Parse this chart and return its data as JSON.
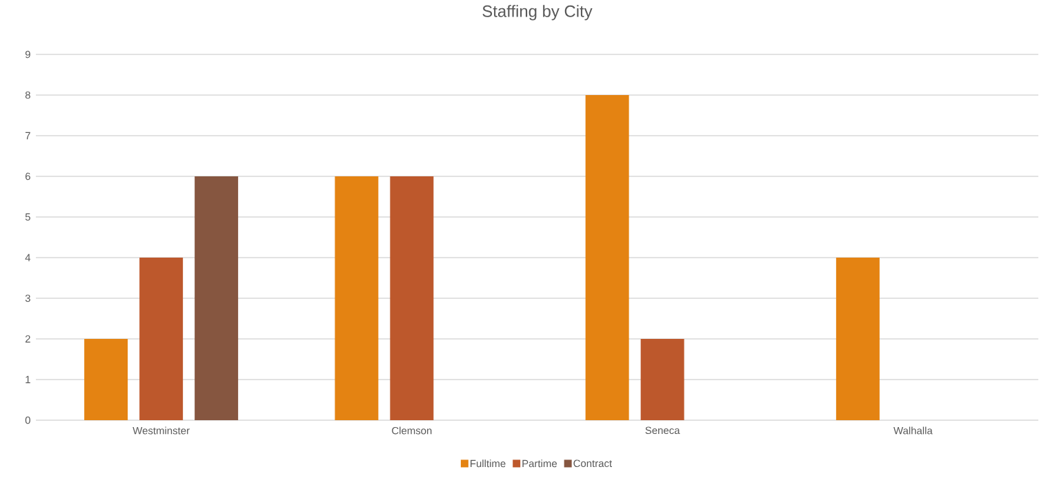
{
  "chart_data": {
    "type": "bar",
    "title": "Staffing by City",
    "categories": [
      "Westminster",
      "Clemson",
      "Seneca",
      "Walhalla"
    ],
    "series": [
      {
        "name": "Fulltime",
        "color": "#e48312",
        "values": [
          2,
          6,
          8,
          4
        ]
      },
      {
        "name": "Partime",
        "color": "#bd582c",
        "values": [
          4,
          6,
          2,
          null
        ]
      },
      {
        "name": "Contract",
        "color": "#865640",
        "values": [
          6,
          null,
          null,
          null
        ]
      }
    ],
    "ylim": [
      0,
      9
    ],
    "yticks": [
      0,
      1,
      2,
      3,
      4,
      5,
      6,
      7,
      8,
      9
    ],
    "grid": "y",
    "legend": "bottom"
  }
}
